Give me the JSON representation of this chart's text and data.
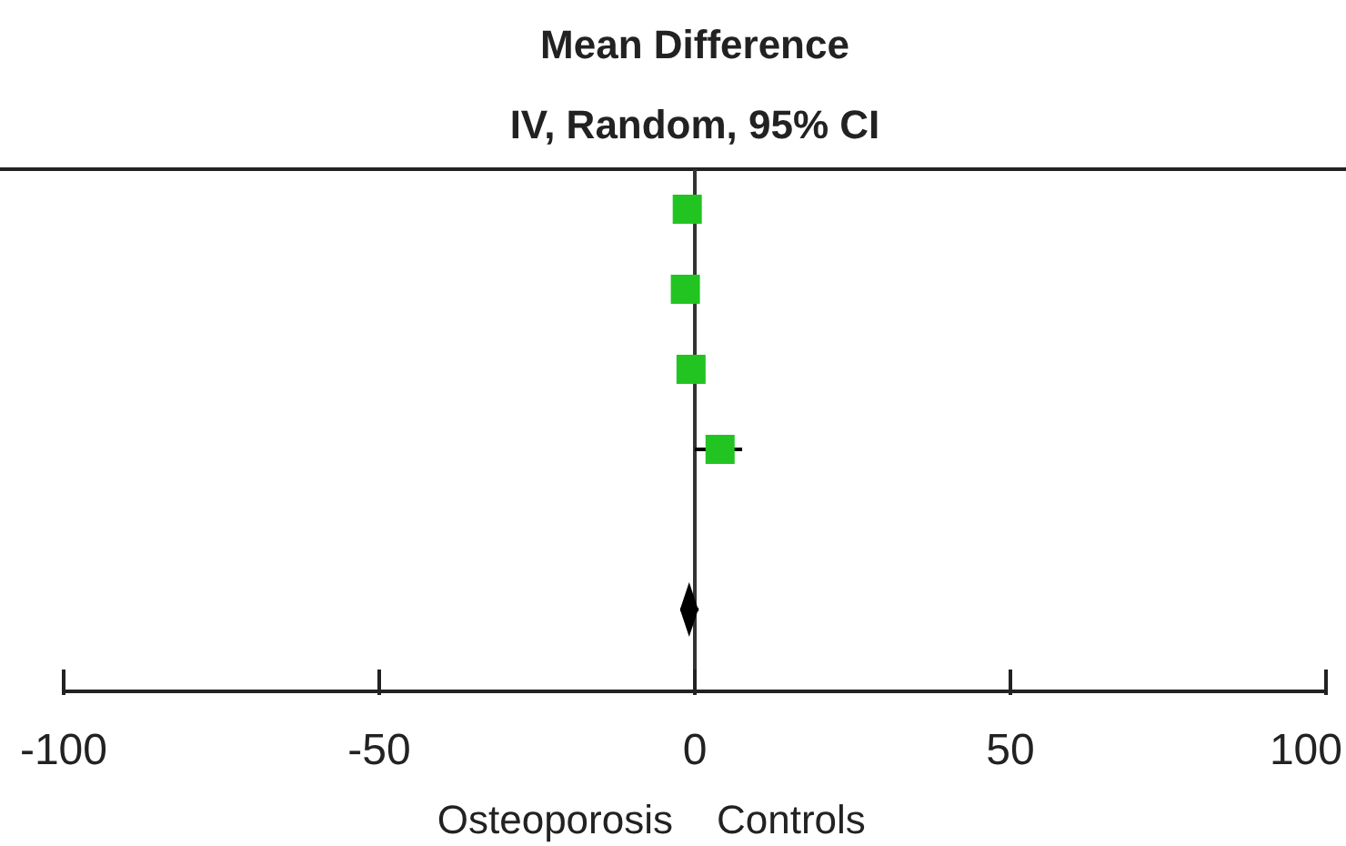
{
  "chart_data": {
    "type": "scatter",
    "orientation": "horizontal",
    "title": "Mean Difference",
    "subtitle": "IV, Random, 95% CI",
    "categories": [
      null,
      null,
      null,
      null,
      null,
      null
    ],
    "series": [
      {
        "type": "scatter",
        "color": "#22c422",
        "marker": "square",
        "values": [
          -1.2,
          -1.5,
          -0.6,
          4,
          null,
          null
        ],
        "errors": [
          null,
          null,
          null,
          [
            0,
            7.5
          ],
          null,
          null
        ]
      },
      {
        "type": "scatter",
        "color": "#000000",
        "marker": "diamond",
        "values": [
          null,
          null,
          null,
          null,
          null,
          -0.9
        ],
        "errors": [
          null,
          null,
          null,
          null,
          null,
          [
            -2.3,
            0.6
          ]
        ]
      }
    ],
    "xlim": [
      -100,
      100
    ],
    "xticks": [
      -100,
      -50,
      0,
      50,
      100
    ],
    "ref_lines": [
      {
        "axis": "x",
        "value": 0
      }
    ],
    "annotations": [
      "Osteoporosis",
      "Controls"
    ],
    "grid": false
  }
}
